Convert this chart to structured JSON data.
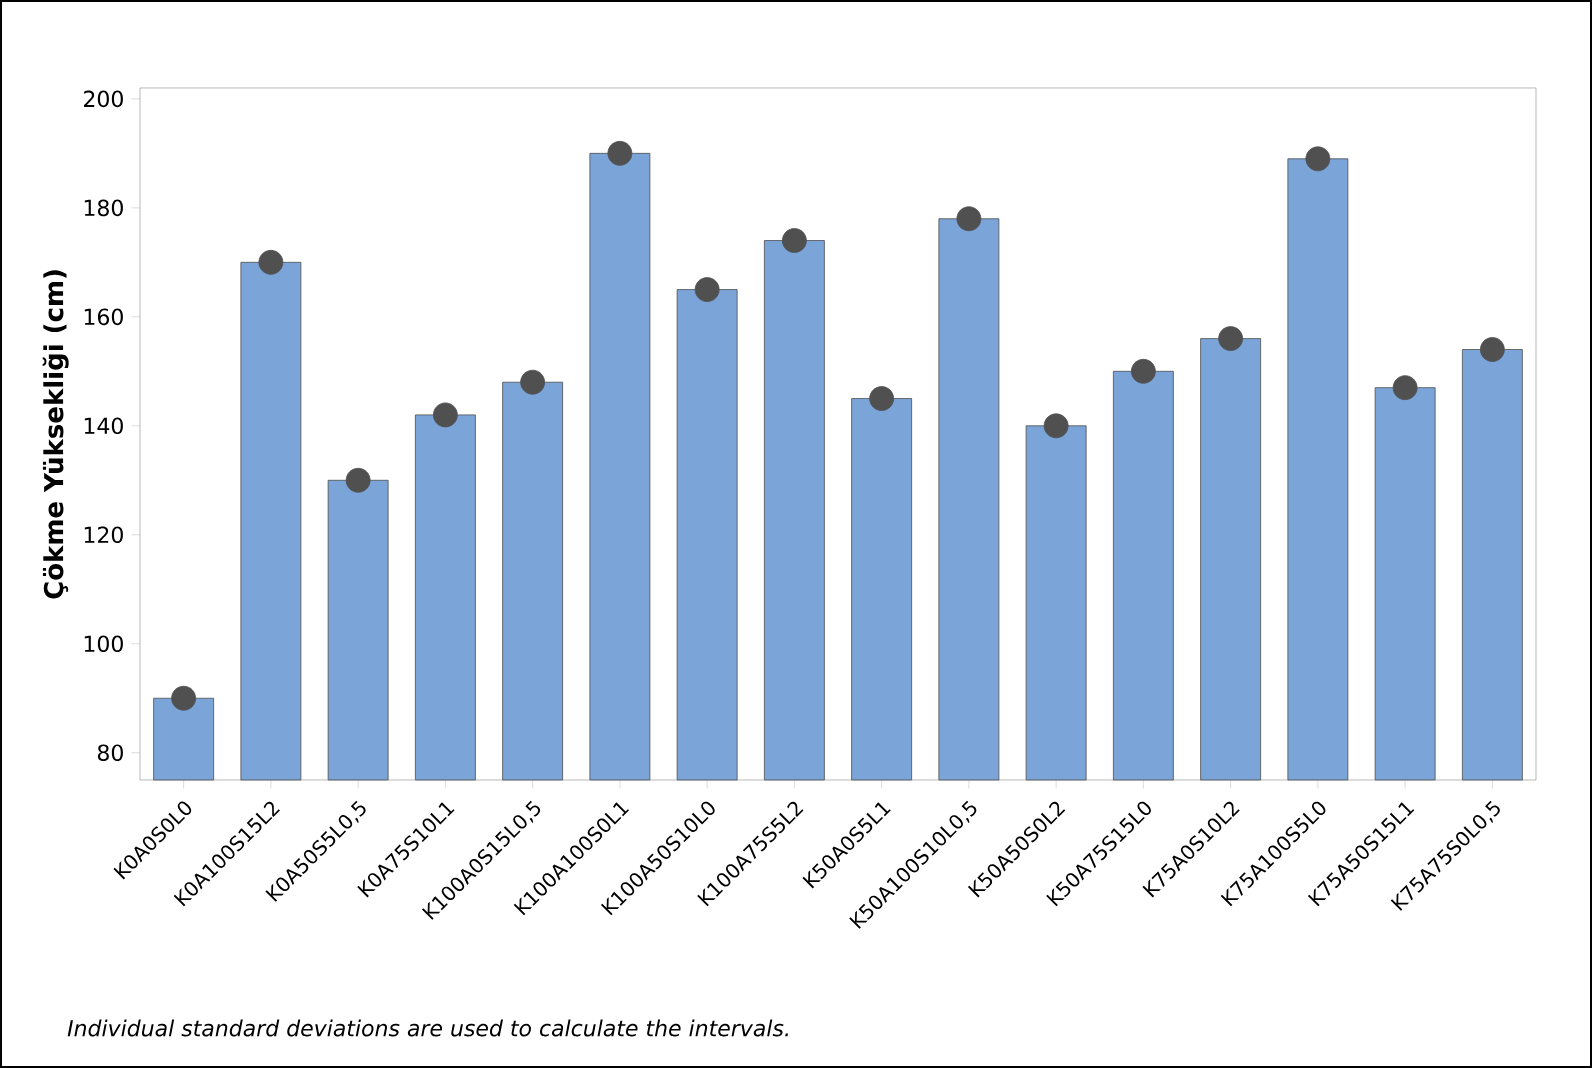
{
  "chart_data": {
    "type": "bar",
    "ylabel": "Çökme Yüksekliği (cm)",
    "categories": [
      "K0A0S0L0",
      "K0A100S15L2",
      "K0A50S5L0,5",
      "K0A75S10L1",
      "K100A0S15L0,5",
      "K100A100S0L1",
      "K100A50S10L0",
      "K100A75S5L2",
      "K50A0S5L1",
      "K50A100S10L0,5",
      "K50A50S0L2",
      "K50A75S15L0",
      "K75A0S10L2",
      "K75A100S5L0",
      "K75A50S15L1",
      "K75A75S0L0,5"
    ],
    "series": [
      {
        "color": "#7ba5d9",
        "values": [
          90,
          170,
          130,
          142,
          148,
          190,
          165,
          174,
          145,
          178,
          140,
          150,
          156,
          189,
          147,
          154
        ]
      },
      {
        "type": "scatter",
        "color": "#505050",
        "x": [
          "K0A0S0L0",
          "K0A100S15L2",
          "K0A50S5L0,5",
          "K0A75S10L1",
          "K100A0S15L0,5",
          "K100A100S0L1",
          "K100A50S10L0",
          "K100A75S5L2",
          "K50A0S5L1",
          "K50A100S10L0,5",
          "K50A50S0L2",
          "K50A75S15L0",
          "K75A0S10L2",
          "K75A100S5L0",
          "K75A50S15L1",
          "K75A75S0L0,5"
        ],
        "values": [
          90,
          170,
          130,
          142,
          148,
          190,
          165,
          174,
          145,
          178,
          140,
          150,
          156,
          189,
          147,
          154
        ]
      }
    ],
    "ylim": [
      75,
      202
    ],
    "yticks": [
      80,
      100,
      120,
      140,
      160,
      180,
      200
    ],
    "grid": false,
    "marker": "circle",
    "annotations": [
      "Individual standard deviations are used to calculate the intervals."
    ]
  }
}
